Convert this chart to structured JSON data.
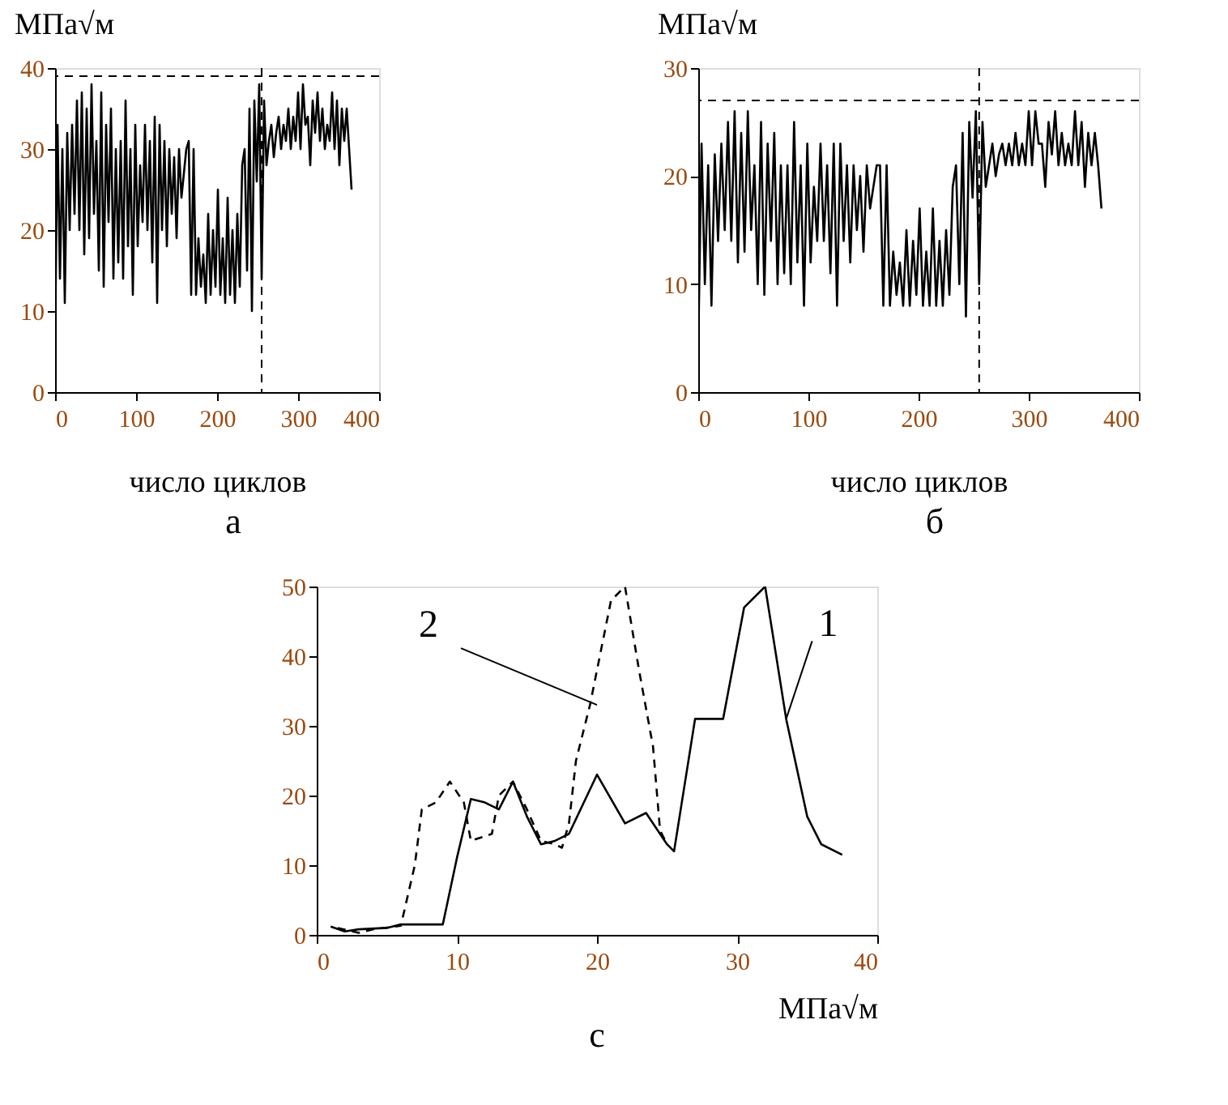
{
  "chart_data": [
    {
      "type": "line",
      "ylabel": "МПа√м",
      "xlabel": "число циклов",
      "annotations": [
        "а"
      ],
      "xlim": [
        0,
        400
      ],
      "xticks": [
        0,
        100,
        200,
        300,
        400
      ],
      "ylim": [
        0,
        40
      ],
      "yticks": [
        0,
        10,
        20,
        30,
        40
      ],
      "grid": false,
      "line_style": "solid",
      "x": [
        0,
        3,
        6,
        9,
        12,
        15,
        18,
        21,
        24,
        27,
        30,
        33,
        36,
        39,
        42,
        45,
        48,
        51,
        54,
        57,
        60,
        63,
        66,
        69,
        72,
        75,
        78,
        81,
        84,
        87,
        90,
        93,
        96,
        99,
        102,
        105,
        108,
        111,
        114,
        117,
        120,
        123,
        126,
        129,
        132,
        135,
        138,
        141,
        144,
        147,
        150,
        153,
        156,
        159,
        162,
        165,
        168,
        171,
        174,
        177,
        180,
        183,
        186,
        189,
        192,
        195,
        198,
        201,
        204,
        207,
        210,
        213,
        216,
        219,
        222,
        225,
        228,
        231,
        234,
        237,
        240,
        243,
        246,
        249,
        252,
        255,
        258,
        261,
        264,
        267,
        270,
        273,
        276,
        279,
        282,
        285,
        288,
        291,
        294,
        297,
        300,
        303,
        306,
        309,
        312,
        315,
        318,
        321,
        324,
        327,
        330,
        333,
        336,
        339,
        342,
        345,
        348,
        351,
        354,
        357,
        360,
        363,
        366
      ],
      "series": [
        {
          "color": "#000000",
          "values": [
            6,
            33,
            14,
            30,
            11,
            32,
            20,
            33,
            22,
            36,
            20,
            37,
            17,
            35,
            19,
            38,
            22,
            31,
            15,
            37,
            13,
            33,
            21,
            35,
            14,
            30,
            16,
            31,
            14,
            36,
            18,
            30,
            12,
            33,
            18,
            28,
            21,
            33,
            20,
            31,
            16,
            34,
            11,
            33,
            20,
            31,
            18,
            30,
            22,
            29,
            19,
            30,
            24,
            27,
            30,
            31,
            12,
            30,
            12,
            19,
            13,
            17,
            11,
            22,
            12,
            20,
            13,
            25,
            12,
            19,
            11,
            24,
            12,
            20,
            11,
            22,
            13,
            28,
            30,
            15,
            35,
            10,
            36,
            26,
            38,
            14,
            36,
            28,
            31,
            33,
            29,
            32,
            34,
            30,
            33,
            31,
            35,
            30,
            34,
            31,
            37,
            30,
            38,
            33,
            34,
            28,
            36,
            32,
            37,
            31,
            35,
            30,
            33,
            31,
            37,
            30,
            36,
            28,
            35,
            31,
            35,
            30,
            25
          ]
        }
      ],
      "ref_lines": [
        {
          "axis": "y",
          "value": 39,
          "color": "#000000",
          "line_style": "dashed"
        },
        {
          "axis": "x",
          "value": 255,
          "color": "#000000",
          "line_style": "dashed"
        }
      ]
    },
    {
      "type": "line",
      "ylabel": "МПа√м",
      "xlabel": "число циклов",
      "annotations": [
        "б"
      ],
      "xlim": [
        0,
        400
      ],
      "xticks": [
        0,
        100,
        200,
        300,
        400
      ],
      "ylim": [
        0,
        30
      ],
      "yticks": [
        0,
        10,
        20,
        30
      ],
      "grid": false,
      "line_style": "solid",
      "x": [
        0,
        3,
        6,
        9,
        12,
        15,
        18,
        21,
        24,
        27,
        30,
        33,
        36,
        39,
        42,
        45,
        48,
        51,
        54,
        57,
        60,
        63,
        66,
        69,
        72,
        75,
        78,
        81,
        84,
        87,
        90,
        93,
        96,
        99,
        102,
        105,
        108,
        111,
        114,
        117,
        120,
        123,
        126,
        129,
        132,
        135,
        138,
        141,
        144,
        147,
        150,
        153,
        156,
        159,
        162,
        165,
        168,
        171,
        174,
        177,
        180,
        183,
        186,
        189,
        192,
        195,
        198,
        201,
        204,
        207,
        210,
        213,
        216,
        219,
        222,
        225,
        228,
        231,
        234,
        237,
        240,
        243,
        246,
        249,
        252,
        255,
        258,
        261,
        264,
        267,
        270,
        273,
        276,
        279,
        282,
        285,
        288,
        291,
        294,
        297,
        300,
        303,
        306,
        309,
        312,
        315,
        318,
        321,
        324,
        327,
        330,
        333,
        336,
        339,
        342,
        345,
        348,
        351,
        354,
        357,
        360,
        363,
        366
      ],
      "series": [
        {
          "color": "#000000",
          "values": [
            4,
            23,
            10,
            21,
            8,
            22,
            14,
            23,
            15,
            25,
            14,
            26,
            12,
            24,
            13,
            26,
            15,
            21,
            10,
            25,
            9,
            23,
            14,
            24,
            10,
            21,
            11,
            21,
            10,
            25,
            12,
            21,
            8,
            23,
            12,
            19,
            14,
            23,
            14,
            21,
            11,
            23,
            8,
            23,
            14,
            21,
            12,
            21,
            15,
            20,
            13,
            21,
            17,
            19,
            21,
            21,
            8,
            21,
            8,
            13,
            9,
            12,
            8,
            15,
            8,
            14,
            9,
            17,
            8,
            13,
            8,
            17,
            8,
            14,
            8,
            15,
            9,
            19,
            21,
            10,
            24,
            7,
            25,
            18,
            26,
            10,
            25,
            19,
            21,
            23,
            20,
            22,
            23,
            21,
            23,
            21,
            24,
            21,
            23,
            21,
            26,
            21,
            26,
            23,
            23,
            19,
            25,
            22,
            26,
            21,
            24,
            21,
            23,
            21,
            26,
            21,
            25,
            19,
            24,
            21,
            24,
            21,
            17
          ]
        }
      ],
      "ref_lines": [
        {
          "axis": "y",
          "value": 27,
          "color": "#000000",
          "line_style": "dashed"
        },
        {
          "axis": "x",
          "value": 255,
          "color": "#000000",
          "line_style": "dashed"
        }
      ]
    },
    {
      "type": "line",
      "xlabel": "МПа√м",
      "annotations": [
        "с",
        {
          "text": "2",
          "x": 20,
          "y": 33
        },
        {
          "text": "1",
          "x": 33.5,
          "y": 31
        }
      ],
      "xlim": [
        0,
        40
      ],
      "xticks": [
        0,
        10,
        20,
        30,
        40
      ],
      "ylim": [
        0,
        50
      ],
      "yticks": [
        0,
        10,
        20,
        30,
        40,
        50
      ],
      "grid": false,
      "series": [
        {
          "color": "#000000",
          "line_style": "solid",
          "x": [
            1,
            2,
            3,
            5,
            6,
            9,
            10,
            11,
            12,
            13,
            14,
            15,
            16,
            17,
            18,
            20,
            22,
            23.5,
            25,
            25.5,
            27,
            29,
            30.5,
            32,
            33.5,
            35,
            36,
            37.5
          ],
          "values": [
            1.2,
            0.5,
            0.8,
            1,
            1.5,
            1.5,
            11,
            19.5,
            19,
            18,
            22,
            17,
            13,
            13.5,
            14.5,
            23,
            16,
            17.5,
            13,
            12,
            31,
            31,
            47,
            50,
            31,
            17,
            13,
            11.5
          ]
        },
        {
          "color": "#000000",
          "line_style": "dashed",
          "x": [
            1.5,
            3,
            4,
            6,
            7,
            7.5,
            8.5,
            9.5,
            10.5,
            11,
            12.5,
            13,
            14,
            15,
            16,
            17,
            17.5,
            18,
            18.5,
            19.5,
            21,
            22,
            23,
            24,
            24.5,
            25
          ],
          "values": [
            1,
            0.3,
            0.8,
            1.3,
            10,
            18,
            19,
            22,
            19,
            13.5,
            14.5,
            20,
            22,
            18,
            13.5,
            13,
            12.5,
            16,
            25,
            33,
            48,
            50,
            38,
            27,
            15,
            13
          ]
        }
      ]
    }
  ]
}
